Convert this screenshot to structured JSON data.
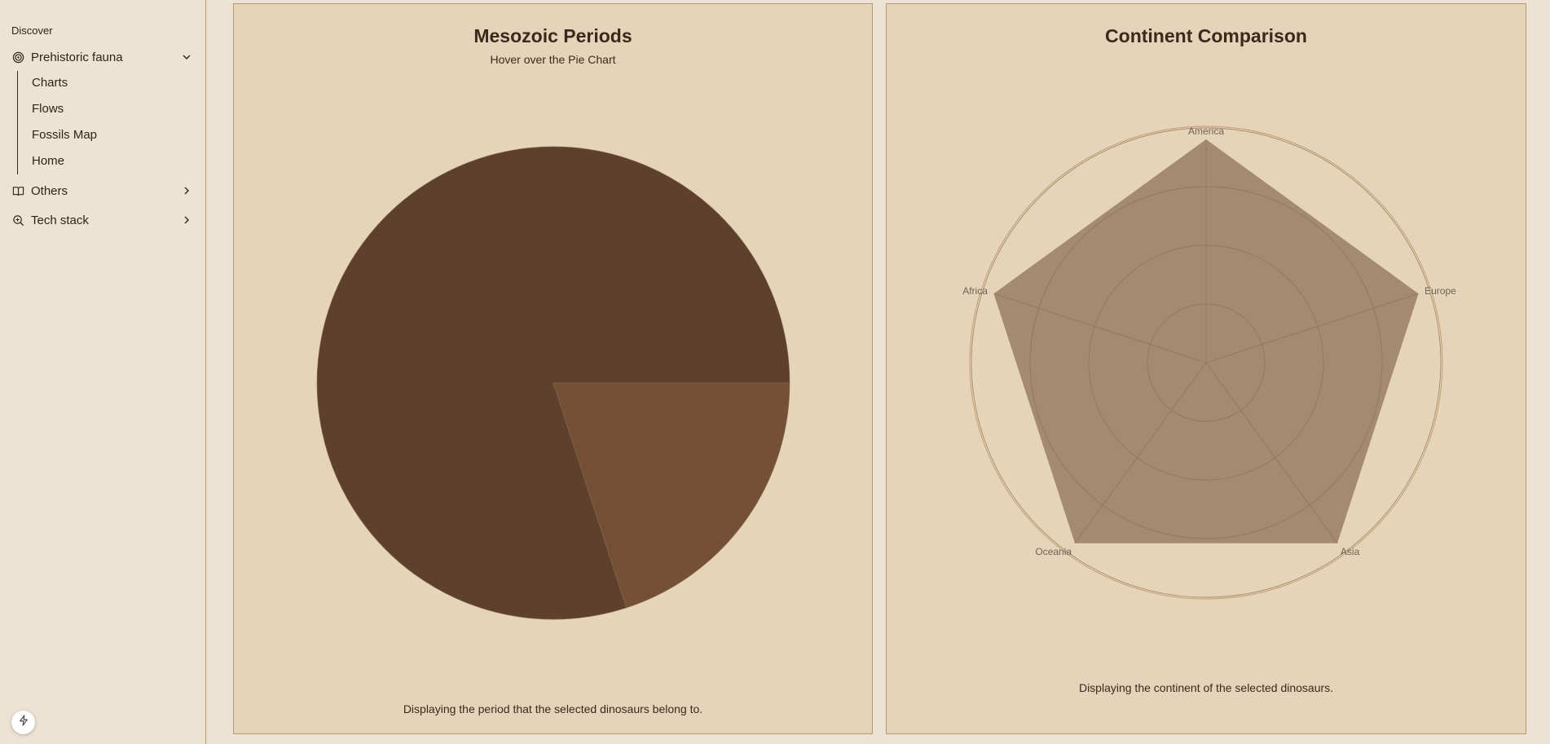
{
  "sidebar": {
    "group_label": "Discover",
    "items": [
      {
        "label": "Prehistoric fauna",
        "icon": "spiral-icon",
        "expanded": true
      },
      {
        "label": "Others",
        "icon": "book-icon",
        "expanded": false
      },
      {
        "label": "Tech stack",
        "icon": "search-zoom-icon",
        "expanded": false
      }
    ],
    "subitems": [
      "Charts",
      "Flows",
      "Fossils Map",
      "Home"
    ]
  },
  "pie_card": {
    "title": "Mesozoic Periods",
    "subtitle": "Hover over the Pie Chart",
    "footer": "Displaying the period that the selected dinosaurs belong to."
  },
  "radar_card": {
    "title": "Continent Comparison",
    "footer": "Displaying the continent of the selected dinosaurs."
  },
  "colors": {
    "pie_main": "#5d412c",
    "pie_slice": "#745036",
    "radar_fill": "#a48a70",
    "grid": "#c09e6e"
  },
  "chart_data": [
    {
      "type": "pie",
      "title": "Mesozoic Periods",
      "slices": [
        {
          "value": 80
        },
        {
          "value": 20
        }
      ]
    },
    {
      "type": "radar",
      "title": "Continent Comparison",
      "axes": [
        "America",
        "Europe",
        "Asia",
        "Oceania",
        "Africa"
      ],
      "values": [
        1,
        1,
        1,
        1,
        1
      ],
      "max": 1,
      "rings": 4
    }
  ]
}
